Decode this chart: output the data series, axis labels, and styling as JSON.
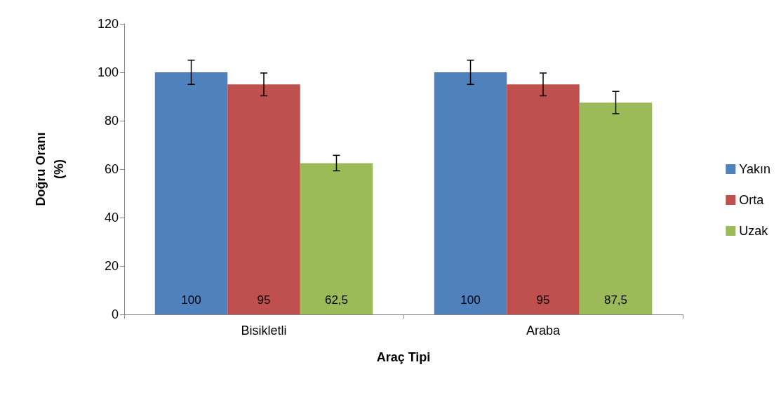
{
  "chart_data": {
    "type": "bar",
    "xlabel": "Araç Tipi",
    "ylabel": "Doğru Oranı\n(%)",
    "categories": [
      "Bisikletli",
      "Araba"
    ],
    "series": [
      {
        "name": "Yakın",
        "color": "#4f81bd",
        "values": [
          100,
          100
        ],
        "errors": [
          5,
          5
        ],
        "value_labels": [
          "100",
          "100"
        ]
      },
      {
        "name": "Orta",
        "color": "#c0504d",
        "values": [
          95,
          95
        ],
        "errors": [
          4.7,
          4.7
        ],
        "value_labels": [
          "95",
          "95"
        ]
      },
      {
        "name": "Uzak",
        "color": "#9bbb59",
        "values": [
          62.5,
          87.5
        ],
        "errors": [
          3.2,
          4.6
        ],
        "value_labels": [
          "62,5",
          "87,5"
        ]
      }
    ],
    "ylim": [
      0,
      120
    ],
    "yticks": [
      0,
      20,
      40,
      60,
      80,
      100,
      120
    ],
    "grid": false,
    "legend": "right"
  }
}
